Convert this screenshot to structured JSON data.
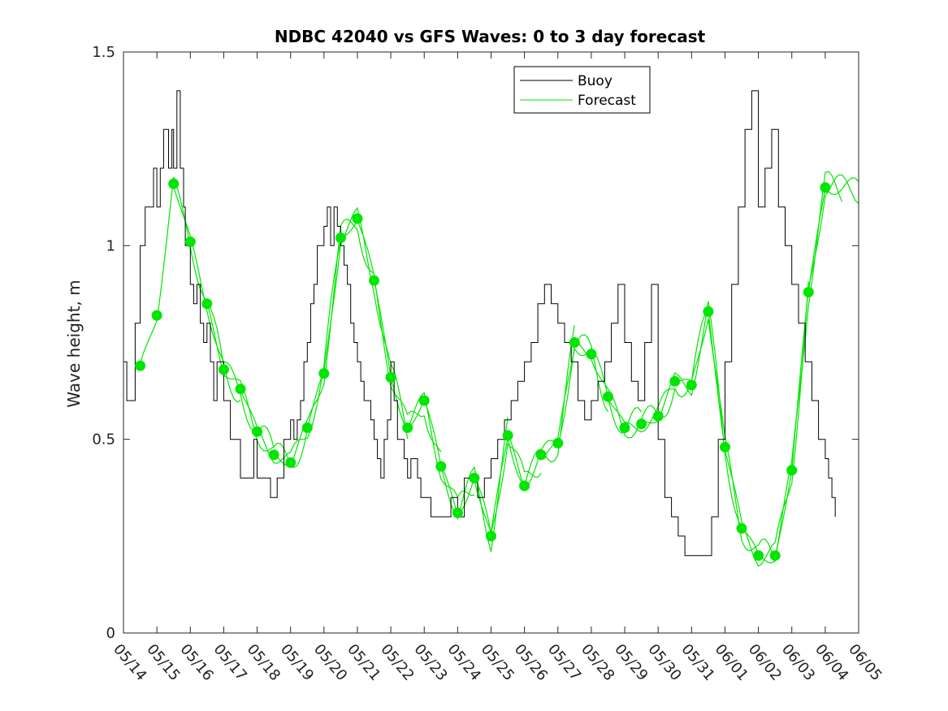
{
  "chart_data": {
    "type": "line",
    "title": "NDBC 42040 vs GFS Waves: 0 to 3 day forecast",
    "xlabel": "",
    "ylabel": "Wave height, m",
    "xlim": [
      "05/14",
      "06/05"
    ],
    "ylim": [
      0,
      1.5
    ],
    "x_tick_labels": [
      "05/14",
      "05/15",
      "05/16",
      "05/17",
      "05/18",
      "05/19",
      "05/20",
      "05/21",
      "05/22",
      "05/23",
      "05/24",
      "05/25",
      "05/26",
      "05/27",
      "05/28",
      "05/29",
      "05/30",
      "05/31",
      "06/01",
      "06/02",
      "06/03",
      "06/04",
      "06/05"
    ],
    "y_tick_labels": [
      "0",
      "0.5",
      "1",
      "1.5"
    ],
    "y_ticks": [
      0,
      0.5,
      1,
      1.5
    ],
    "grid": false,
    "legend": {
      "placement": "top-right",
      "entries": [
        "Buoy",
        "Forecast"
      ]
    },
    "colors": {
      "buoy": "#000000",
      "forecast": "#00e600"
    },
    "series": [
      {
        "name": "Buoy",
        "x_days": [
          0,
          0.1,
          0.2,
          0.35,
          0.5,
          0.65,
          0.8,
          0.9,
          1.0,
          1.1,
          1.2,
          1.3,
          1.35,
          1.45,
          1.5,
          1.6,
          1.7,
          1.8,
          1.85,
          1.9,
          1.95,
          2.0,
          2.1,
          2.2,
          2.3,
          2.4,
          2.5,
          2.6,
          2.7,
          2.8,
          2.9,
          3.0,
          3.1,
          3.2,
          3.3,
          3.4,
          3.5,
          3.6,
          3.7,
          3.8,
          3.9,
          4.0,
          4.2,
          4.4,
          4.6,
          4.8,
          5.0,
          5.1,
          5.2,
          5.3,
          5.4,
          5.5,
          5.6,
          5.7,
          5.8,
          5.9,
          6.0,
          6.1,
          6.2,
          6.3,
          6.4,
          6.5,
          6.6,
          6.7,
          6.8,
          6.9,
          7.0,
          7.1,
          7.2,
          7.3,
          7.4,
          7.5,
          7.6,
          7.7,
          7.8,
          7.9,
          8.0,
          8.1,
          8.2,
          8.3,
          8.4,
          8.5,
          8.6,
          8.7,
          8.8,
          8.9,
          9.0,
          9.2,
          9.4,
          9.6,
          9.8,
          10.0,
          10.2,
          10.4,
          10.6,
          10.8,
          11.0,
          11.2,
          11.4,
          11.6,
          11.8,
          12.0,
          12.2,
          12.4,
          12.6,
          12.8,
          13.0,
          13.2,
          13.4,
          13.6,
          13.8,
          14.0,
          14.2,
          14.4,
          14.6,
          14.8,
          15.0,
          15.2,
          15.4,
          15.6,
          15.8,
          16.0,
          16.2,
          16.4,
          16.6,
          16.8,
          17.0,
          17.2,
          17.4,
          17.6,
          17.8,
          18.0,
          18.2,
          18.4,
          18.6,
          18.8,
          19.0,
          19.2,
          19.4,
          19.6,
          19.8,
          20.0,
          20.2,
          20.4,
          20.6,
          20.8,
          21.0,
          21.1,
          21.2,
          21.3
        ],
        "values": [
          0.7,
          0.6,
          0.6,
          0.8,
          1.0,
          1.1,
          1.1,
          1.2,
          1.1,
          1.2,
          1.3,
          1.3,
          1.2,
          1.3,
          1.2,
          1.4,
          1.2,
          1.1,
          1.0,
          1.0,
          1.0,
          0.9,
          0.85,
          0.9,
          0.8,
          0.75,
          0.8,
          0.7,
          0.6,
          0.7,
          0.7,
          0.6,
          0.6,
          0.5,
          0.5,
          0.5,
          0.4,
          0.4,
          0.4,
          0.4,
          0.5,
          0.4,
          0.4,
          0.35,
          0.4,
          0.5,
          0.55,
          0.5,
          0.55,
          0.6,
          0.7,
          0.75,
          0.85,
          0.9,
          1.0,
          1.0,
          1.05,
          1.1,
          1.0,
          1.1,
          1.05,
          1.0,
          0.95,
          0.9,
          0.8,
          0.75,
          0.7,
          0.65,
          0.6,
          0.6,
          0.55,
          0.5,
          0.45,
          0.4,
          0.5,
          0.55,
          0.7,
          0.6,
          0.5,
          0.5,
          0.45,
          0.4,
          0.45,
          0.45,
          0.4,
          0.35,
          0.35,
          0.3,
          0.3,
          0.3,
          0.35,
          0.3,
          0.4,
          0.4,
          0.35,
          0.4,
          0.45,
          0.5,
          0.55,
          0.6,
          0.65,
          0.7,
          0.75,
          0.85,
          0.9,
          0.85,
          0.8,
          0.75,
          0.7,
          0.6,
          0.55,
          0.6,
          0.65,
          0.7,
          0.8,
          0.9,
          0.75,
          0.65,
          0.6,
          0.75,
          0.9,
          0.5,
          0.35,
          0.3,
          0.25,
          0.2,
          0.2,
          0.2,
          0.2,
          0.3,
          0.5,
          0.7,
          0.9,
          1.1,
          1.3,
          1.4,
          1.1,
          1.2,
          1.3,
          1.1,
          1.0,
          0.9,
          0.8,
          0.7,
          0.6,
          0.5,
          0.45,
          0.4,
          0.35,
          0.3
        ]
      },
      {
        "name": "Forecast",
        "x_days": [
          0.5,
          1.0,
          1.5,
          2.0,
          2.5,
          3.0,
          3.5,
          4.0,
          4.5,
          5.0,
          5.5,
          6.0,
          6.5,
          7.0,
          7.5,
          8.0,
          8.5,
          9.0,
          9.5,
          10.0,
          10.5,
          11.0,
          11.5,
          12.0,
          12.5,
          13.0,
          13.5,
          14.0,
          14.5,
          15.0,
          15.5,
          16.0,
          16.5,
          17.0,
          17.5,
          18.0,
          18.5,
          19.0,
          19.5,
          20.0,
          20.5,
          21.0
        ],
        "values": [
          0.69,
          0.82,
          1.16,
          1.01,
          0.85,
          0.68,
          0.63,
          0.52,
          0.46,
          0.44,
          0.53,
          0.67,
          1.02,
          1.07,
          0.91,
          0.66,
          0.53,
          0.6,
          0.43,
          0.31,
          0.4,
          0.25,
          0.51,
          0.38,
          0.46,
          0.49,
          0.75,
          0.72,
          0.61,
          0.53,
          0.54,
          0.56,
          0.65,
          0.64,
          0.83,
          0.48,
          0.27,
          0.2,
          0.2,
          0.42,
          0.88,
          1.15
        ]
      }
    ]
  }
}
